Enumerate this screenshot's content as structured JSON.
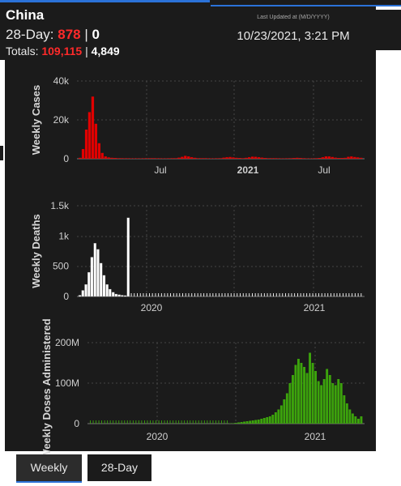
{
  "header": {
    "country": "China",
    "day28_label": "28-Day:",
    "day28_cases": "878",
    "day28_deaths": "0",
    "totals_label": "Totals:",
    "total_cases": "109,115",
    "total_deaths": "4,849",
    "separator": "|"
  },
  "updated": {
    "label": "Last Updated at (M/D/YYYY)",
    "time": "10/23/2021, 3:21 PM"
  },
  "colors": {
    "cases": "#e00000",
    "deaths": "#ffffff",
    "doses": "#3ca30c",
    "accent": "#2b72d8"
  },
  "tabs": {
    "weekly": "Weekly",
    "day28": "28-Day"
  },
  "chart_data": [
    {
      "type": "bar",
      "ylabel": "Weekly Cases",
      "yticks": [
        "40k",
        "20k",
        "0"
      ],
      "ylim": [
        0,
        40000
      ],
      "xticks": [
        "Jul",
        "2021",
        "Jul"
      ],
      "series": [
        {
          "color": "#e00000",
          "values": [
            500,
            5000,
            15000,
            24000,
            32000,
            18000,
            8000,
            3000,
            1200,
            700,
            500,
            400,
            300,
            300,
            250,
            250,
            200,
            200,
            200,
            200,
            250,
            250,
            300,
            300,
            250,
            250,
            200,
            200,
            250,
            300,
            300,
            600,
            1000,
            1500,
            1200,
            800,
            500,
            300,
            300,
            300,
            250,
            200,
            200,
            250,
            300,
            600,
            800,
            900,
            700,
            500,
            400,
            300,
            500,
            800,
            1100,
            1000,
            800,
            600,
            400,
            300,
            300,
            300,
            250,
            200,
            200,
            250,
            300,
            400,
            500,
            400,
            300,
            200,
            200,
            200,
            300,
            400,
            800,
            1200,
            1200,
            900,
            600,
            400,
            400,
            500,
            1000,
            1200,
            900,
            700,
            500
          ]
        }
      ]
    },
    {
      "type": "bar",
      "ylabel": "Weekly Deaths",
      "yticks": [
        "1.5k",
        "1k",
        "500",
        "0"
      ],
      "ylim": [
        0,
        1500
      ],
      "xticks": [
        "2020",
        "2021"
      ],
      "series": [
        {
          "color": "#ffffff",
          "values": [
            20,
            100,
            200,
            400,
            650,
            880,
            780,
            550,
            350,
            200,
            120,
            70,
            40,
            30,
            20,
            15,
            1300,
            0,
            2,
            2,
            2,
            2,
            1,
            1,
            1,
            1,
            1,
            1,
            1,
            1,
            1,
            1,
            5,
            5,
            5,
            5,
            5,
            5,
            5,
            4,
            4,
            3,
            2,
            1,
            1,
            1,
            1,
            1,
            1,
            1,
            1,
            1,
            1,
            1,
            1,
            1,
            1,
            1,
            1,
            1,
            3,
            3,
            2,
            2,
            1,
            1,
            2,
            2,
            1,
            1,
            1,
            1,
            1,
            1,
            1,
            1,
            1,
            1,
            1,
            1,
            1,
            1,
            1,
            1,
            1,
            1,
            1,
            1,
            1,
            1,
            1,
            1,
            1,
            1
          ]
        }
      ]
    },
    {
      "type": "bar",
      "ylabel": "Weekly Doses Administered",
      "yticks": [
        "200M",
        "100M",
        "0"
      ],
      "ylim": [
        0,
        200
      ],
      "xticks": [
        "2020",
        "2021"
      ],
      "series": [
        {
          "color": "#3ca30c",
          "values": [
            0,
            0,
            0,
            0,
            0,
            0,
            0,
            0,
            0,
            0,
            0,
            0,
            0,
            0,
            0,
            0,
            0,
            0,
            0,
            0,
            0,
            0,
            0,
            0,
            0,
            0,
            0,
            0,
            0,
            0,
            0,
            0,
            0,
            0,
            0,
            0,
            0,
            0,
            0,
            0,
            0,
            0,
            0,
            0,
            0,
            0,
            0,
            0,
            0,
            1,
            1,
            2,
            3,
            4,
            5,
            6,
            7,
            8,
            9,
            10,
            12,
            14,
            16,
            18,
            22,
            28,
            35,
            45,
            60,
            75,
            100,
            120,
            145,
            160,
            150,
            140,
            125,
            175,
            150,
            130,
            105,
            95,
            110,
            135,
            120,
            100,
            95,
            110,
            100,
            70,
            50,
            35,
            25,
            18,
            12,
            18
          ]
        }
      ]
    }
  ]
}
